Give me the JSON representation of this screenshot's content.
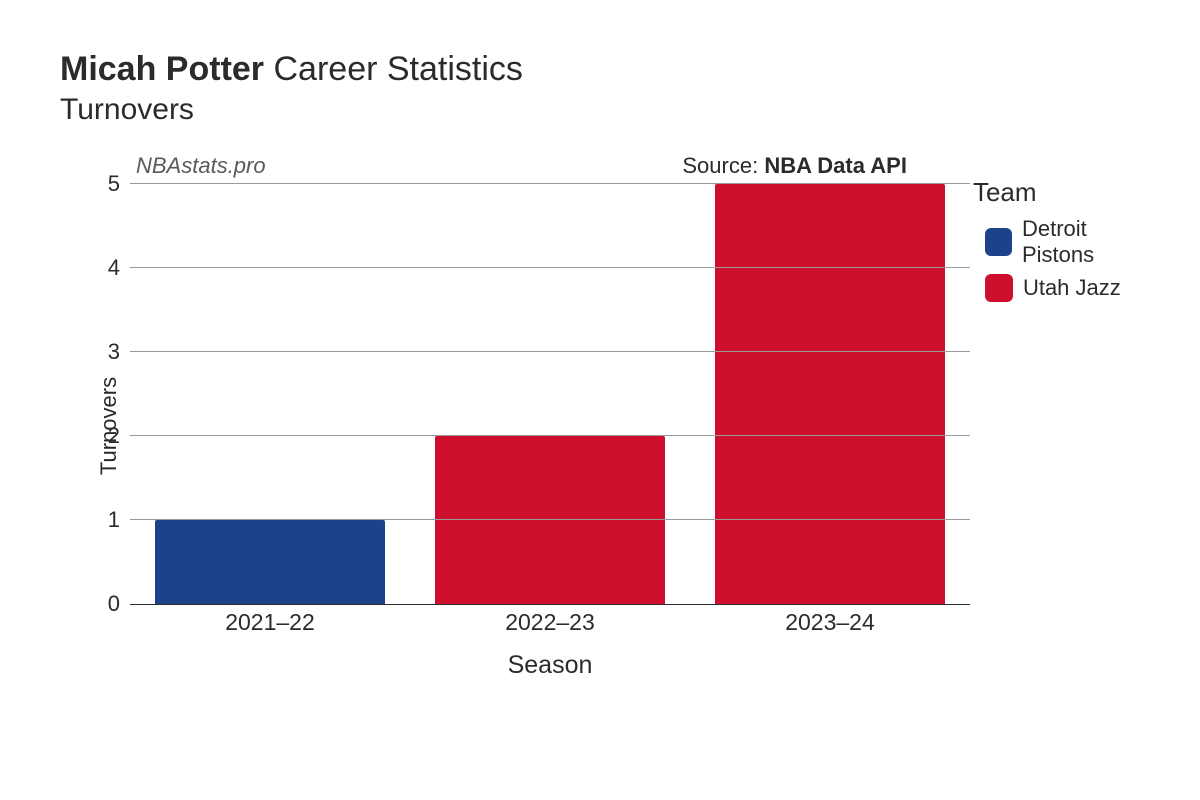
{
  "title": {
    "bold": "Micah Potter",
    "rest": " Career Statistics",
    "fontsize": 34
  },
  "subtitle": {
    "text": "Turnovers",
    "fontsize": 30
  },
  "watermark": "NBAstats.pro",
  "source": {
    "label": "Source: ",
    "value": "NBA Data API"
  },
  "chart": {
    "type": "bar",
    "categories": [
      "2021–22",
      "2022–23",
      "2023–24"
    ],
    "values": [
      1,
      2,
      5
    ],
    "bar_colors": [
      "#1d428a",
      "#ce0e2d",
      "#ce0e2d"
    ],
    "ylabel": "Turnovers",
    "xlabel": "Season",
    "ylim": [
      0,
      5
    ],
    "yticks": [
      0,
      1,
      2,
      3,
      4,
      5
    ],
    "bar_width_ratio": 0.82,
    "background_color": "#ffffff",
    "grid_color": "#9a9a9a",
    "label_fontsize": 22,
    "tick_fontsize": 22,
    "axis_label_fontsize": 25
  },
  "legend": {
    "title": "Team",
    "items": [
      {
        "label": "Detroit Pistons",
        "color": "#1d428a"
      },
      {
        "label": "Utah Jazz",
        "color": "#ce0e2d"
      }
    ]
  }
}
